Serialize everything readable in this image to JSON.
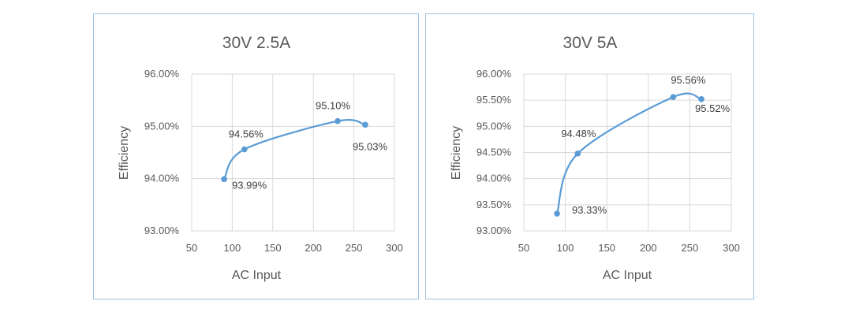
{
  "chart_data": [
    {
      "type": "line",
      "smooth": true,
      "title": "30V 2.5A",
      "xlabel": "AC Input",
      "ylabel": "Efficiency",
      "xlim": [
        50,
        300
      ],
      "ylim": [
        0.93,
        0.96
      ],
      "x_ticks": [
        "50",
        "100",
        "150",
        "200",
        "250",
        "300"
      ],
      "y_ticks": [
        "93.00%",
        "94.00%",
        "95.00%",
        "96.00%"
      ],
      "grid": true,
      "series": [
        {
          "x": [
            90,
            115,
            230,
            264
          ],
          "y": [
            0.9399,
            0.9456,
            0.951,
            0.9503
          ],
          "labels": [
            "93.99%",
            "94.56%",
            "95.10%",
            "95.03%"
          ]
        }
      ]
    },
    {
      "type": "line",
      "smooth": true,
      "title": "30V 5A",
      "xlabel": "AC Input",
      "ylabel": "Efficiency",
      "xlim": [
        50,
        300
      ],
      "ylim": [
        0.93,
        0.96
      ],
      "x_ticks": [
        "50",
        "100",
        "150",
        "200",
        "250",
        "300"
      ],
      "y_ticks": [
        "93.00%",
        "93.50%",
        "94.00%",
        "94.50%",
        "95.00%",
        "95.50%",
        "96.00%"
      ],
      "grid": true,
      "series": [
        {
          "x": [
            90,
            115,
            230,
            264
          ],
          "y": [
            0.9333,
            0.9448,
            0.9556,
            0.9552
          ],
          "labels": [
            "93.33%",
            "94.48%",
            "95.56%",
            "95.52%"
          ]
        }
      ]
    }
  ],
  "colors": {
    "series": "#5b9bd5",
    "border": "#9ec3e0",
    "grid": "#d9d9d9",
    "text": "#595959"
  }
}
